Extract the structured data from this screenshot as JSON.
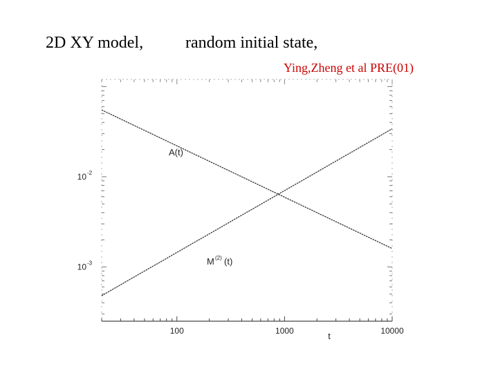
{
  "header": {
    "title_left": "2D XY model,",
    "title_right": "random initial state,",
    "reference": "Ying,Zheng et al   PRE(01)"
  },
  "chart_data": {
    "type": "line",
    "title": "",
    "xlabel": "t",
    "ylabel": "",
    "xscale": "log",
    "yscale": "log",
    "xlim": [
      20,
      10000
    ],
    "ylim": [
      0.00025,
      0.12
    ],
    "x_ticks": [
      {
        "value": 100,
        "label": "100"
      },
      {
        "value": 1000,
        "label": "1000"
      },
      {
        "value": 10000,
        "label": "10000"
      }
    ],
    "y_ticks": [
      {
        "value": 0.01,
        "label": "10",
        "exponent": "-2"
      },
      {
        "value": 0.001,
        "label": "10",
        "exponent": "-3"
      }
    ],
    "series": [
      {
        "name": "A(t)",
        "superscript": "",
        "suffix": "",
        "color": "#333333",
        "x": [
          20,
          10000
        ],
        "y": [
          0.055,
          0.0016
        ]
      },
      {
        "name": "M",
        "superscript": "(2)",
        "suffix": "(t)",
        "color": "#333333",
        "x": [
          20,
          10000
        ],
        "y": [
          0.00048,
          0.034
        ]
      }
    ],
    "grid": false,
    "legend": "none",
    "frame": "bottom-axis-with-dashed-box"
  }
}
